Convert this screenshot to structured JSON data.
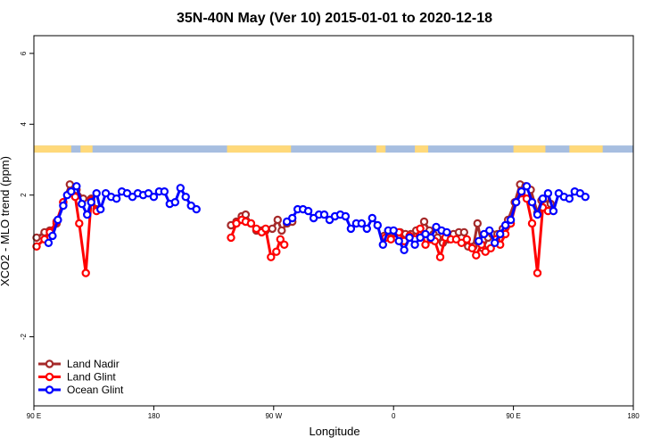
{
  "chart_data": {
    "type": "line",
    "title": "35N-40N May (Ver 10)   2015-01-01 to 2020-12-18",
    "xlabel": "Longitude",
    "ylabel": "XCO2 - MLO trend (ppm)",
    "xlim": [
      90,
      540
    ],
    "ylim": [
      -3.95,
      6.5
    ],
    "x_ticks": [
      {
        "value": 90,
        "label": "90 E"
      },
      {
        "value": 180,
        "label": "180"
      },
      {
        "value": 270,
        "label": "90 W"
      },
      {
        "value": 360,
        "label": "0"
      },
      {
        "value": 450,
        "label": "90 E"
      },
      {
        "value": 540,
        "label": "180"
      }
    ],
    "y_ticks": [
      {
        "value": -2,
        "label": "-2"
      },
      {
        "value": 2,
        "label": "2"
      },
      {
        "value": 4,
        "label": "4"
      },
      {
        "value": 6,
        "label": "6"
      }
    ],
    "legend_position": "bottom-left",
    "grid": false,
    "land_strip": {
      "y_range": [
        3.2,
        3.4
      ],
      "land_color": "#FFD97A",
      "ocean_color": "#A7BEE0",
      "land_spans": [
        [
          90,
          118
        ],
        [
          125,
          134
        ],
        [
          235,
          283
        ],
        [
          347,
          354
        ],
        [
          376,
          386
        ],
        [
          450,
          474
        ],
        [
          492,
          517
        ]
      ]
    },
    "series": [
      {
        "name": "Land Nadir",
        "color": "#A52A2A",
        "points": [
          [
            92,
            0.8
          ],
          [
            98,
            0.95
          ],
          [
            102,
            1.0
          ],
          [
            107,
            1.2
          ],
          [
            112,
            1.8
          ],
          [
            117,
            2.3
          ],
          [
            122,
            2.15
          ],
          [
            127,
            1.9
          ],
          [
            133,
            1.9
          ],
          [
            137,
            1.6
          ],
          [
            238,
            1.15
          ],
          [
            242,
            1.25
          ],
          [
            246,
            1.4
          ],
          [
            249,
            1.45
          ],
          [
            253,
            1.2
          ],
          [
            257,
            1.0
          ],
          [
            261,
            1.0
          ],
          [
            264,
            1.0
          ],
          [
            269,
            1.05
          ],
          [
            273,
            1.3
          ],
          [
            276,
            1.0
          ],
          [
            280,
            1.2
          ],
          [
            284,
            1.25
          ],
          [
            353,
            0.85
          ],
          [
            357,
            0.8
          ],
          [
            365,
            0.95
          ],
          [
            369,
            0.9
          ],
          [
            373,
            0.9
          ],
          [
            377,
            1.0
          ],
          [
            380,
            1.05
          ],
          [
            383,
            1.25
          ],
          [
            387,
            1.0
          ],
          [
            390,
            0.9
          ],
          [
            393,
            0.8
          ],
          [
            397,
            0.65
          ],
          [
            401,
            0.75
          ],
          [
            405,
            0.9
          ],
          [
            409,
            0.95
          ],
          [
            413,
            0.95
          ],
          [
            416,
            0.55
          ],
          [
            420,
            0.55
          ],
          [
            423,
            1.2
          ],
          [
            427,
            0.5
          ],
          [
            431,
            0.8
          ],
          [
            434,
            0.9
          ],
          [
            438,
            0.9
          ],
          [
            442,
            1.05
          ],
          [
            446,
            1.3
          ],
          [
            451,
            1.8
          ],
          [
            455,
            2.3
          ],
          [
            459,
            2.25
          ],
          [
            463,
            2.15
          ],
          [
            468,
            1.5
          ],
          [
            471,
            1.85
          ],
          [
            474,
            1.9
          ],
          [
            478,
            1.75
          ]
        ]
      },
      {
        "name": "Land Glint",
        "color": "#FF0000",
        "points": [
          [
            92,
            0.55
          ],
          [
            98,
            0.75
          ],
          [
            102,
            0.95
          ],
          [
            107,
            1.25
          ],
          [
            112,
            1.8
          ],
          [
            117,
            2.05
          ],
          [
            121,
            1.95
          ],
          [
            124,
            1.2
          ],
          [
            129,
            -0.2
          ],
          [
            133,
            1.85
          ],
          [
            137,
            1.55
          ],
          [
            238,
            0.8
          ],
          [
            242,
            1.2
          ],
          [
            246,
            1.3
          ],
          [
            249,
            1.25
          ],
          [
            253,
            1.2
          ],
          [
            257,
            1.05
          ],
          [
            261,
            0.95
          ],
          [
            264,
            1.05
          ],
          [
            268,
            0.25
          ],
          [
            272,
            0.4
          ],
          [
            275,
            0.75
          ],
          [
            278,
            0.6
          ],
          [
            354,
            0.8
          ],
          [
            358,
            0.75
          ],
          [
            364,
            0.95
          ],
          [
            368,
            0.7
          ],
          [
            372,
            0.85
          ],
          [
            376,
            0.75
          ],
          [
            380,
            1.05
          ],
          [
            384,
            0.6
          ],
          [
            388,
            0.75
          ],
          [
            391,
            0.7
          ],
          [
            395,
            0.25
          ],
          [
            399,
            0.8
          ],
          [
            403,
            0.75
          ],
          [
            407,
            0.75
          ],
          [
            411,
            0.65
          ],
          [
            415,
            0.75
          ],
          [
            419,
            0.5
          ],
          [
            422,
            0.3
          ],
          [
            426,
            0.6
          ],
          [
            429,
            0.4
          ],
          [
            433,
            0.5
          ],
          [
            437,
            0.75
          ],
          [
            440,
            0.6
          ],
          [
            444,
            0.9
          ],
          [
            448,
            1.2
          ],
          [
            452,
            1.8
          ],
          [
            456,
            2.05
          ],
          [
            460,
            1.9
          ],
          [
            464,
            1.2
          ],
          [
            468,
            -0.2
          ],
          [
            472,
            1.65
          ],
          [
            476,
            1.55
          ]
        ]
      },
      {
        "name": "Ocean Glint",
        "color": "#0000FF",
        "points": [
          [
            101,
            0.65
          ],
          [
            104,
            0.85
          ],
          [
            108,
            1.3
          ],
          [
            112,
            1.7
          ],
          [
            115,
            2.0
          ],
          [
            118,
            2.1
          ],
          [
            122,
            2.25
          ],
          [
            126,
            1.75
          ],
          [
            130,
            1.45
          ],
          [
            133,
            1.8
          ],
          [
            137,
            2.05
          ],
          [
            140,
            1.6
          ],
          [
            144,
            2.05
          ],
          [
            148,
            1.95
          ],
          [
            152,
            1.9
          ],
          [
            156,
            2.1
          ],
          [
            160,
            2.05
          ],
          [
            164,
            1.95
          ],
          [
            168,
            2.05
          ],
          [
            172,
            2.0
          ],
          [
            176,
            2.05
          ],
          [
            180,
            1.95
          ],
          [
            184,
            2.1
          ],
          [
            188,
            2.1
          ],
          [
            192,
            1.75
          ],
          [
            196,
            1.8
          ],
          [
            200,
            2.2
          ],
          [
            204,
            1.95
          ],
          [
            208,
            1.7
          ],
          [
            212,
            1.6
          ],
          [
            280,
            1.25
          ],
          [
            284,
            1.35
          ],
          [
            288,
            1.6
          ],
          [
            292,
            1.6
          ],
          [
            296,
            1.55
          ],
          [
            300,
            1.35
          ],
          [
            304,
            1.45
          ],
          [
            308,
            1.45
          ],
          [
            312,
            1.3
          ],
          [
            316,
            1.4
          ],
          [
            320,
            1.45
          ],
          [
            324,
            1.4
          ],
          [
            328,
            1.05
          ],
          [
            332,
            1.2
          ],
          [
            336,
            1.2
          ],
          [
            340,
            1.05
          ],
          [
            344,
            1.35
          ],
          [
            348,
            1.15
          ],
          [
            352,
            0.6
          ],
          [
            356,
            1.0
          ],
          [
            360,
            1.0
          ],
          [
            364,
            0.7
          ],
          [
            368,
            0.45
          ],
          [
            372,
            0.8
          ],
          [
            376,
            0.6
          ],
          [
            380,
            0.8
          ],
          [
            384,
            0.9
          ],
          [
            388,
            0.8
          ],
          [
            392,
            1.1
          ],
          [
            396,
            1.0
          ],
          [
            400,
            0.95
          ],
          [
            424,
            0.7
          ],
          [
            428,
            0.9
          ],
          [
            432,
            1.0
          ],
          [
            436,
            0.65
          ],
          [
            440,
            0.9
          ],
          [
            444,
            1.15
          ],
          [
            448,
            1.3
          ],
          [
            452,
            1.8
          ],
          [
            456,
            2.1
          ],
          [
            460,
            2.25
          ],
          [
            464,
            1.8
          ],
          [
            468,
            1.45
          ],
          [
            472,
            1.9
          ],
          [
            476,
            2.05
          ],
          [
            480,
            1.55
          ],
          [
            484,
            2.05
          ],
          [
            488,
            1.95
          ],
          [
            492,
            1.9
          ],
          [
            496,
            2.1
          ],
          [
            500,
            2.05
          ],
          [
            504,
            1.95
          ]
        ]
      }
    ]
  }
}
